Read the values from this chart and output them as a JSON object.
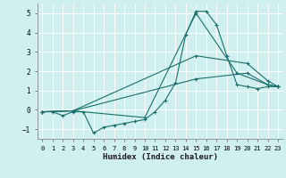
{
  "xlabel": "Humidex (Indice chaleur)",
  "bg_color": "#d0f0f0",
  "line_color": "#1a6e6a",
  "grid_color": "#ffffff",
  "xlim": [
    -0.5,
    23.5
  ],
  "ylim": [
    -1.5,
    5.5
  ],
  "yticks": [
    -1,
    0,
    1,
    2,
    3,
    4,
    5
  ],
  "xticks": [
    0,
    1,
    2,
    3,
    4,
    5,
    6,
    7,
    8,
    9,
    10,
    11,
    12,
    13,
    14,
    15,
    16,
    17,
    18,
    19,
    20,
    21,
    22,
    23
  ],
  "series": [
    {
      "x": [
        0,
        1,
        2,
        3,
        4,
        5,
        6,
        7,
        8,
        9,
        10,
        11,
        12,
        13,
        14,
        15,
        16,
        17,
        18,
        19,
        20,
        21,
        22,
        23
      ],
      "y": [
        -0.1,
        -0.1,
        -0.3,
        -0.1,
        -0.1,
        -1.2,
        -0.9,
        -0.8,
        -0.7,
        -0.6,
        -0.5,
        -0.1,
        0.5,
        1.4,
        3.9,
        5.1,
        5.1,
        4.4,
        2.8,
        1.3,
        1.2,
        1.1,
        1.2,
        1.2
      ],
      "ls": "-"
    },
    {
      "x": [
        0,
        3,
        15,
        20,
        22,
        23
      ],
      "y": [
        -0.1,
        -0.05,
        1.6,
        1.9,
        1.3,
        1.2
      ],
      "ls": "-"
    },
    {
      "x": [
        0,
        3,
        15,
        20,
        22,
        23
      ],
      "y": [
        -0.1,
        -0.05,
        2.8,
        2.4,
        1.5,
        1.2
      ],
      "ls": "-"
    },
    {
      "x": [
        0,
        3,
        10,
        15,
        19,
        22,
        23
      ],
      "y": [
        -0.1,
        -0.05,
        -0.4,
        5.0,
        1.9,
        1.3,
        1.2
      ],
      "ls": "-"
    }
  ]
}
